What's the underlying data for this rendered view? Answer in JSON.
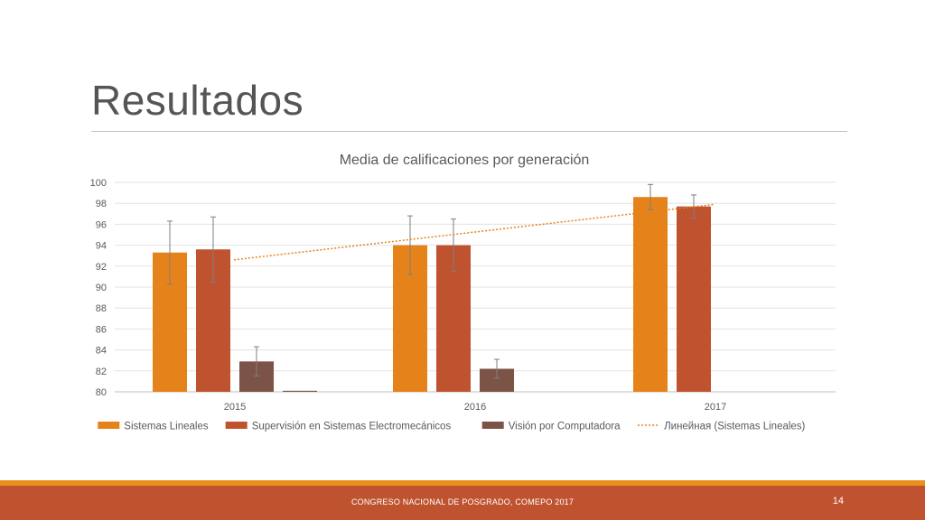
{
  "slide": {
    "title": "Resultados",
    "footer_text": "CONGRESO NACIONAL DE POSGRADO, COMEPO 2017",
    "page_number": "14"
  },
  "colors": {
    "series": [
      "#e5821a",
      "#bf5330",
      "#7b5447"
    ],
    "trendline": "#e5821a",
    "footer": "#bf5330",
    "footer_stripe": "#e8901c"
  },
  "chart_data": {
    "type": "bar",
    "title": "Media de calificaciones por generación",
    "xlabel": "",
    "ylabel": "",
    "categories": [
      "2015",
      "2016",
      "2017"
    ],
    "ylim": [
      80,
      100
    ],
    "yticks": [
      80,
      82,
      84,
      86,
      88,
      90,
      92,
      94,
      96,
      98,
      100
    ],
    "grid": true,
    "legend_position": "bottom",
    "series": [
      {
        "name": "Sistemas Lineales",
        "values": [
          93.3,
          94.0,
          98.6
        ],
        "error": [
          3.0,
          2.8,
          1.2
        ]
      },
      {
        "name": "Supervisión en Sistemas Electromecánicos",
        "values": [
          93.6,
          94.0,
          97.7
        ],
        "error": [
          3.1,
          2.5,
          1.1
        ]
      },
      {
        "name": "Visión por Computadora",
        "values": [
          82.9,
          82.2,
          null
        ],
        "error": [
          1.4,
          0.9,
          null
        ]
      }
    ],
    "extra_bar": {
      "category": "2015",
      "value": 80.0
    },
    "trendline": {
      "name": "Линейная (Sistemas Lineales)",
      "type": "linear",
      "start": 92.6,
      "end": 97.9
    }
  }
}
